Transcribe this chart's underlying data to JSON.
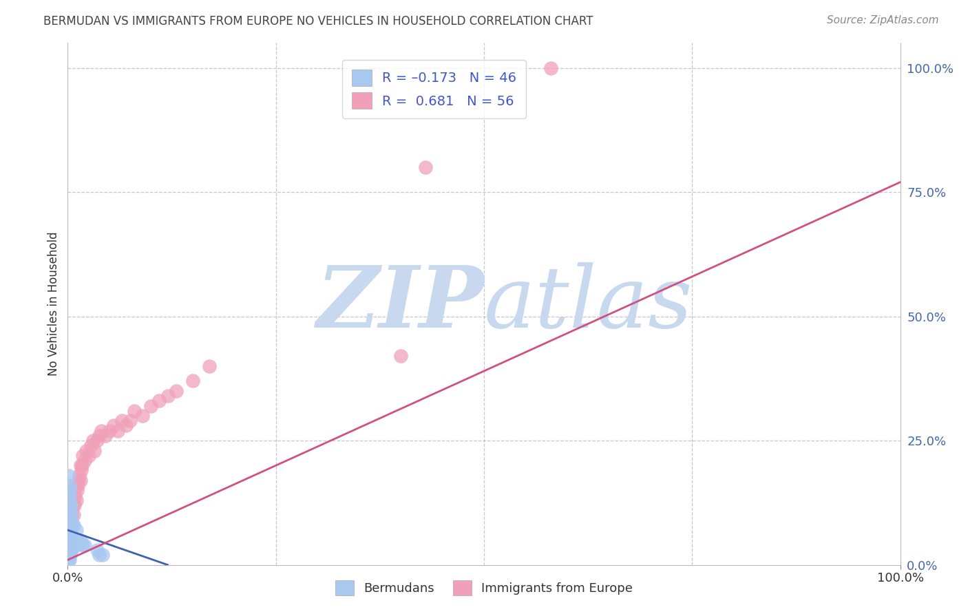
{
  "title": "BERMUDAN VS IMMIGRANTS FROM EUROPE NO VEHICLES IN HOUSEHOLD CORRELATION CHART",
  "source": "Source: ZipAtlas.com",
  "ylabel": "No Vehicles in Household",
  "ytick_vals": [
    0.0,
    0.25,
    0.5,
    0.75,
    1.0
  ],
  "ytick_labels": [
    "0.0%",
    "25.0%",
    "50.0%",
    "75.0%",
    "100.0%"
  ],
  "xtick_vals": [
    0.0,
    1.0
  ],
  "xtick_labels": [
    "0.0%",
    "100.0%"
  ],
  "xrange": [
    0,
    1.0
  ],
  "yrange": [
    0,
    1.05
  ],
  "color_blue": "#A8C8F0",
  "color_pink": "#F0A0B8",
  "color_blue_line": "#4060B0",
  "color_pink_line": "#D05080",
  "color_grid": "#B8B8C8",
  "watermark_color": "#C8D8EE",
  "label_bermudans": "Bermudans",
  "label_immigrants": "Immigrants from Europe",
  "blue_x": [
    0.001,
    0.001,
    0.001,
    0.001,
    0.001,
    0.001,
    0.001,
    0.001,
    0.001,
    0.001,
    0.002,
    0.002,
    0.002,
    0.002,
    0.002,
    0.002,
    0.002,
    0.002,
    0.003,
    0.003,
    0.003,
    0.003,
    0.003,
    0.003,
    0.004,
    0.004,
    0.004,
    0.004,
    0.005,
    0.005,
    0.005,
    0.006,
    0.006,
    0.007,
    0.007,
    0.008,
    0.009,
    0.01,
    0.01,
    0.012,
    0.015,
    0.018,
    0.02,
    0.035,
    0.038,
    0.042
  ],
  "blue_y": [
    0.01,
    0.02,
    0.03,
    0.04,
    0.05,
    0.06,
    0.08,
    0.1,
    0.14,
    0.18,
    0.01,
    0.02,
    0.03,
    0.05,
    0.07,
    0.1,
    0.13,
    0.16,
    0.02,
    0.03,
    0.05,
    0.08,
    0.12,
    0.15,
    0.03,
    0.05,
    0.08,
    0.12,
    0.03,
    0.06,
    0.1,
    0.04,
    0.08,
    0.04,
    0.08,
    0.05,
    0.05,
    0.04,
    0.07,
    0.05,
    0.05,
    0.04,
    0.04,
    0.03,
    0.02,
    0.02
  ],
  "pink_x": [
    0.001,
    0.001,
    0.002,
    0.002,
    0.002,
    0.003,
    0.003,
    0.003,
    0.004,
    0.004,
    0.005,
    0.005,
    0.006,
    0.007,
    0.007,
    0.008,
    0.008,
    0.009,
    0.01,
    0.01,
    0.011,
    0.012,
    0.013,
    0.014,
    0.015,
    0.015,
    0.016,
    0.017,
    0.018,
    0.02,
    0.022,
    0.025,
    0.028,
    0.03,
    0.032,
    0.035,
    0.038,
    0.04,
    0.045,
    0.05,
    0.055,
    0.06,
    0.065,
    0.07,
    0.075,
    0.08,
    0.09,
    0.1,
    0.11,
    0.12,
    0.13,
    0.15,
    0.17,
    0.4,
    0.43,
    0.58
  ],
  "pink_y": [
    0.04,
    0.06,
    0.05,
    0.08,
    0.1,
    0.07,
    0.1,
    0.13,
    0.09,
    0.12,
    0.1,
    0.14,
    0.12,
    0.1,
    0.13,
    0.12,
    0.15,
    0.14,
    0.13,
    0.16,
    0.15,
    0.16,
    0.17,
    0.18,
    0.17,
    0.2,
    0.19,
    0.2,
    0.22,
    0.21,
    0.23,
    0.22,
    0.24,
    0.25,
    0.23,
    0.25,
    0.26,
    0.27,
    0.26,
    0.27,
    0.28,
    0.27,
    0.29,
    0.28,
    0.29,
    0.31,
    0.3,
    0.32,
    0.33,
    0.34,
    0.35,
    0.37,
    0.4,
    0.42,
    0.8,
    1.0
  ],
  "blue_line_x": [
    0.0,
    0.12
  ],
  "blue_line_y": [
    0.07,
    0.0
  ],
  "pink_line_x": [
    0.0,
    1.0
  ],
  "pink_line_y": [
    0.01,
    0.77
  ]
}
